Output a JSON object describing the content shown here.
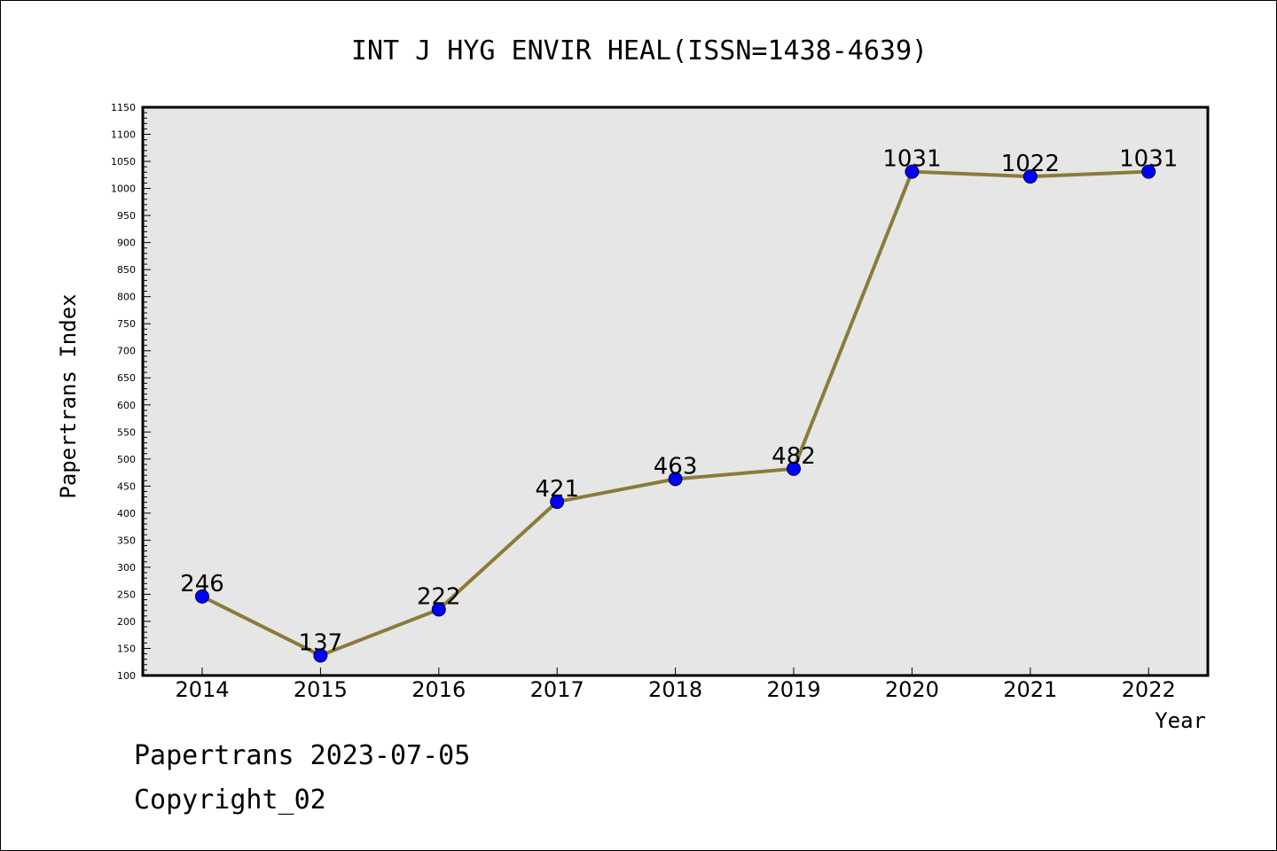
{
  "chart_data": {
    "type": "line",
    "title": "INT J HYG ENVIR HEAL(ISSN=1438-4639)",
    "xlabel": "Year",
    "ylabel": "Papertrans Index",
    "categories": [
      "2014",
      "2015",
      "2016",
      "2017",
      "2018",
      "2019",
      "2020",
      "2021",
      "2022"
    ],
    "series": [
      {
        "values": [
          246,
          137,
          222,
          421,
          463,
          482,
          1031,
          1022,
          1031
        ]
      }
    ],
    "data_labels": [
      "246",
      "137",
      "222",
      "421",
      "463",
      "482",
      "1031",
      "1022",
      "1031"
    ],
    "ylim": [
      100,
      1150
    ],
    "ytick_step": 50,
    "yticks": [
      "100",
      "150",
      "200",
      "250",
      "300",
      "350",
      "400",
      "450",
      "500",
      "550",
      "600",
      "650",
      "700",
      "750",
      "800",
      "850",
      "900",
      "950",
      "1000",
      "1050",
      "1100",
      "1150"
    ],
    "grid": false,
    "legend": "none",
    "colors": {
      "line": "#8b7b3a",
      "marker": "#0000ff",
      "plot_background": "#e6e6e6"
    }
  },
  "footer": {
    "line1": "Papertrans 2023-07-05",
    "line2": "Copyright_02"
  }
}
